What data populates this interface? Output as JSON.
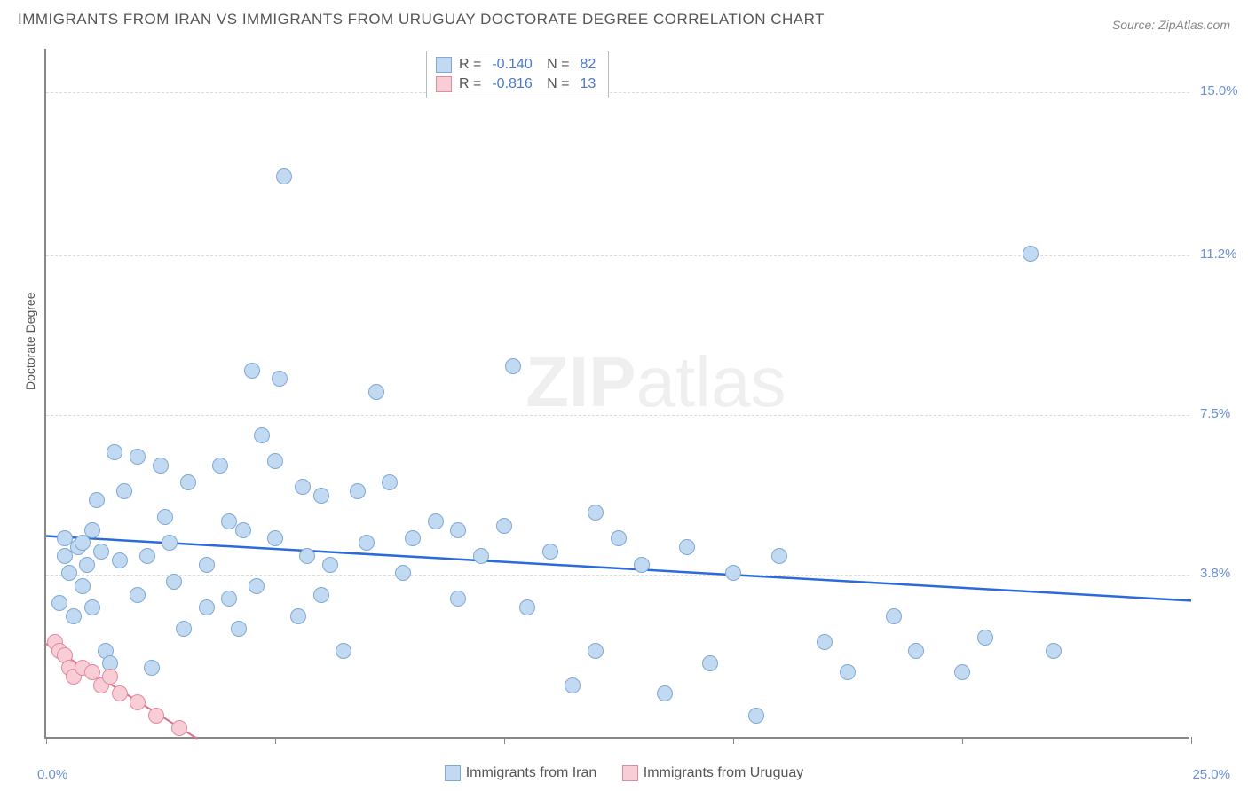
{
  "title": "IMMIGRANTS FROM IRAN VS IMMIGRANTS FROM URUGUAY DOCTORATE DEGREE CORRELATION CHART",
  "source": "Source: ZipAtlas.com",
  "ylabel": "Doctorate Degree",
  "watermark": {
    "part1": "ZIP",
    "part2": "atlas"
  },
  "chart": {
    "type": "scatter",
    "x_range": [
      0,
      25
    ],
    "y_range": [
      0,
      16
    ],
    "x_min_label": "0.0%",
    "x_max_label": "25.0%",
    "grid_color": "#dddddd",
    "axis_color": "#888888",
    "background": "#ffffff",
    "y_ticks": [
      {
        "value": 3.8,
        "label": "3.8%"
      },
      {
        "value": 7.5,
        "label": "7.5%"
      },
      {
        "value": 11.2,
        "label": "11.2%"
      },
      {
        "value": 15.0,
        "label": "15.0%"
      }
    ],
    "x_tick_positions": [
      0,
      5,
      10,
      15,
      20,
      25
    ],
    "series": [
      {
        "name": "Immigrants from Iran",
        "fill": "#c2d9f2",
        "stroke": "#7fa8d6",
        "marker_radius": 9,
        "trend_color": "#2a6adc",
        "trend_width": 2.5,
        "trend": {
          "x1": 0,
          "y1": 4.7,
          "x2": 25,
          "y2": 3.2
        },
        "stats": {
          "R": "-0.140",
          "N": "82"
        },
        "points": [
          [
            0.3,
            3.1
          ],
          [
            0.4,
            4.2
          ],
          [
            0.4,
            4.6
          ],
          [
            0.5,
            3.8
          ],
          [
            0.6,
            2.8
          ],
          [
            0.7,
            4.4
          ],
          [
            0.8,
            3.5
          ],
          [
            0.8,
            4.5
          ],
          [
            0.9,
            4.0
          ],
          [
            1.0,
            3.0
          ],
          [
            1.0,
            4.8
          ],
          [
            1.1,
            5.5
          ],
          [
            1.2,
            4.3
          ],
          [
            1.3,
            2.0
          ],
          [
            1.4,
            1.7
          ],
          [
            1.5,
            6.6
          ],
          [
            1.6,
            4.1
          ],
          [
            1.7,
            5.7
          ],
          [
            2.0,
            6.5
          ],
          [
            2.0,
            3.3
          ],
          [
            2.2,
            4.2
          ],
          [
            2.3,
            1.6
          ],
          [
            2.5,
            6.3
          ],
          [
            2.6,
            5.1
          ],
          [
            2.7,
            4.5
          ],
          [
            2.8,
            3.6
          ],
          [
            3.0,
            2.5
          ],
          [
            3.1,
            5.9
          ],
          [
            3.5,
            4.0
          ],
          [
            3.5,
            3.0
          ],
          [
            3.8,
            6.3
          ],
          [
            4.0,
            5.0
          ],
          [
            4.0,
            3.2
          ],
          [
            4.2,
            2.5
          ],
          [
            4.3,
            4.8
          ],
          [
            4.5,
            8.5
          ],
          [
            4.6,
            3.5
          ],
          [
            4.7,
            7.0
          ],
          [
            5.0,
            6.4
          ],
          [
            5.0,
            4.6
          ],
          [
            5.1,
            8.3
          ],
          [
            5.2,
            13.0
          ],
          [
            5.5,
            2.8
          ],
          [
            5.6,
            5.8
          ],
          [
            5.7,
            4.2
          ],
          [
            6.0,
            3.3
          ],
          [
            6.0,
            5.6
          ],
          [
            6.2,
            4.0
          ],
          [
            6.5,
            2.0
          ],
          [
            6.8,
            5.7
          ],
          [
            7.0,
            4.5
          ],
          [
            7.2,
            8.0
          ],
          [
            7.5,
            5.9
          ],
          [
            7.8,
            3.8
          ],
          [
            8.0,
            4.6
          ],
          [
            8.5,
            5.0
          ],
          [
            9.0,
            3.2
          ],
          [
            9.0,
            4.8
          ],
          [
            9.5,
            4.2
          ],
          [
            10.0,
            4.9
          ],
          [
            10.2,
            8.6
          ],
          [
            10.5,
            3.0
          ],
          [
            11.0,
            4.3
          ],
          [
            11.5,
            1.2
          ],
          [
            12.0,
            5.2
          ],
          [
            12.0,
            2.0
          ],
          [
            12.5,
            4.6
          ],
          [
            13.0,
            4.0
          ],
          [
            13.5,
            1.0
          ],
          [
            14.0,
            4.4
          ],
          [
            14.5,
            1.7
          ],
          [
            15.0,
            3.8
          ],
          [
            15.5,
            0.5
          ],
          [
            16.0,
            4.2
          ],
          [
            17.0,
            2.2
          ],
          [
            17.5,
            1.5
          ],
          [
            18.5,
            2.8
          ],
          [
            19.0,
            2.0
          ],
          [
            20.0,
            1.5
          ],
          [
            20.5,
            2.3
          ],
          [
            21.5,
            11.2
          ],
          [
            22.0,
            2.0
          ]
        ]
      },
      {
        "name": "Immigrants from Uruguay",
        "fill": "#f8cdd6",
        "stroke": "#e18aa0",
        "marker_radius": 9,
        "trend_color": "#e26d8b",
        "trend_width": 2,
        "trend": {
          "x1": 0,
          "y1": 2.2,
          "x2": 3.3,
          "y2": 0
        },
        "stats": {
          "R": "-0.816",
          "N": "13"
        },
        "points": [
          [
            0.2,
            2.2
          ],
          [
            0.3,
            2.0
          ],
          [
            0.4,
            1.9
          ],
          [
            0.5,
            1.6
          ],
          [
            0.6,
            1.4
          ],
          [
            0.8,
            1.6
          ],
          [
            1.0,
            1.5
          ],
          [
            1.2,
            1.2
          ],
          [
            1.4,
            1.4
          ],
          [
            1.6,
            1.0
          ],
          [
            2.0,
            0.8
          ],
          [
            2.4,
            0.5
          ],
          [
            2.9,
            0.2
          ]
        ]
      }
    ]
  },
  "legend_labels": {
    "iran": "Immigrants from Iran",
    "uruguay": "Immigrants from Uruguay"
  }
}
